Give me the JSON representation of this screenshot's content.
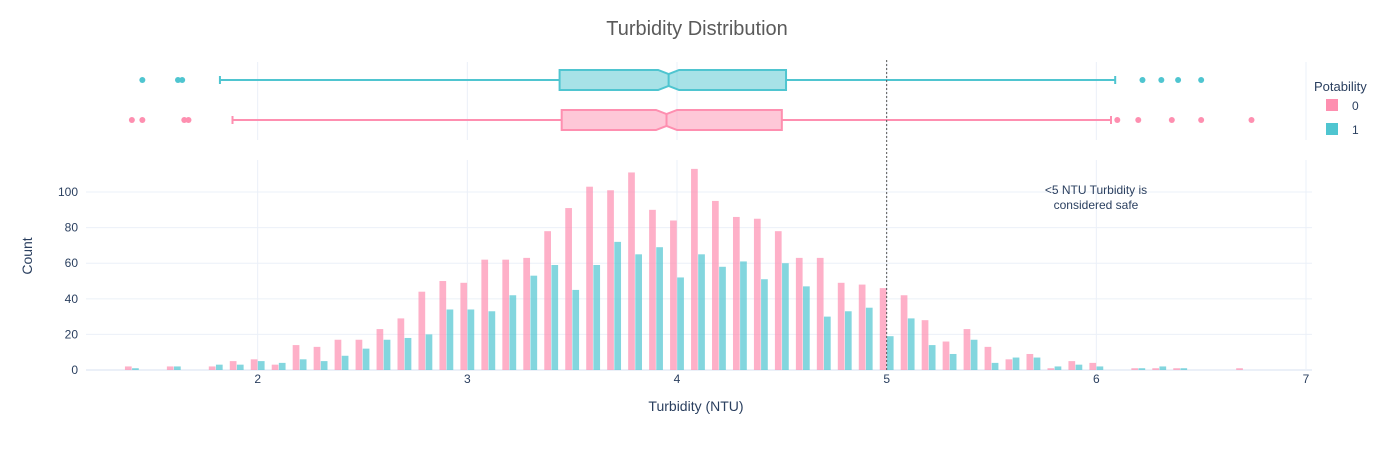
{
  "chart_data": {
    "type": "bar",
    "title": "Turbidity Distribution",
    "xlabel": "Turbidity (NTU)",
    "ylabel": "Count",
    "xlim": [
      1.0,
      7.0
    ],
    "ylim": [
      0,
      118
    ],
    "x_ticks": [
      2,
      3,
      4,
      5,
      6,
      7
    ],
    "y_ticks": [
      0,
      20,
      40,
      60,
      80,
      100
    ],
    "grid": true,
    "legend": {
      "title": "Potability",
      "placement": "right",
      "entries": [
        "0",
        "1"
      ]
    },
    "colors": {
      "0": "#fe8fb0",
      "1": "#4fc5d0"
    },
    "threshold": {
      "x": 5,
      "style": "dotted",
      "label_lines": [
        "<5 NTU Turbidity is",
        "considered safe"
      ]
    },
    "bin_width": 0.1,
    "x": [
      1.4,
      1.6,
      1.8,
      1.9,
      2.0,
      2.1,
      2.2,
      2.3,
      2.4,
      2.5,
      2.6,
      2.7,
      2.8,
      2.9,
      3.0,
      3.1,
      3.2,
      3.3,
      3.4,
      3.5,
      3.6,
      3.7,
      3.8,
      3.9,
      4.0,
      4.1,
      4.2,
      4.3,
      4.4,
      4.5,
      4.6,
      4.7,
      4.8,
      4.9,
      5.0,
      5.1,
      5.2,
      5.3,
      5.4,
      5.5,
      5.6,
      5.7,
      5.8,
      5.9,
      6.0,
      6.2,
      6.3,
      6.4,
      6.7
    ],
    "series": [
      {
        "name": "0",
        "values": [
          2,
          2,
          2,
          5,
          6,
          3,
          14,
          13,
          17,
          17,
          23,
          29,
          44,
          50,
          49,
          62,
          62,
          63,
          78,
          91,
          103,
          101,
          111,
          90,
          84,
          113,
          95,
          86,
          85,
          78,
          63,
          63,
          49,
          48,
          46,
          42,
          28,
          16,
          23,
          13,
          6,
          9,
          1,
          5,
          4,
          1,
          1,
          1,
          1
        ]
      },
      {
        "name": "1",
        "values": [
          1,
          2,
          3,
          3,
          5,
          4,
          6,
          5,
          8,
          12,
          17,
          18,
          20,
          34,
          34,
          33,
          42,
          53,
          59,
          45,
          59,
          72,
          65,
          69,
          52,
          65,
          58,
          61,
          51,
          60,
          47,
          30,
          33,
          35,
          19,
          29,
          14,
          9,
          17,
          4,
          7,
          7,
          2,
          3,
          2,
          1,
          2,
          1,
          0
        ]
      }
    ],
    "box_plots": [
      {
        "name": "1",
        "q1": 3.44,
        "median": 3.96,
        "q3": 4.52,
        "notch_low": 3.91,
        "notch_high": 4.01,
        "whisker_low": 1.82,
        "whisker_high": 6.09,
        "outliers": [
          1.45,
          1.62,
          1.64,
          6.22,
          6.31,
          6.39,
          6.5
        ]
      },
      {
        "name": "0",
        "q1": 3.45,
        "median": 3.95,
        "q3": 4.5,
        "notch_low": 3.9,
        "notch_high": 4.0,
        "whisker_low": 1.88,
        "whisker_high": 6.07,
        "outliers": [
          1.4,
          1.45,
          1.65,
          1.67,
          6.1,
          6.2,
          6.36,
          6.5,
          6.74
        ]
      }
    ]
  }
}
